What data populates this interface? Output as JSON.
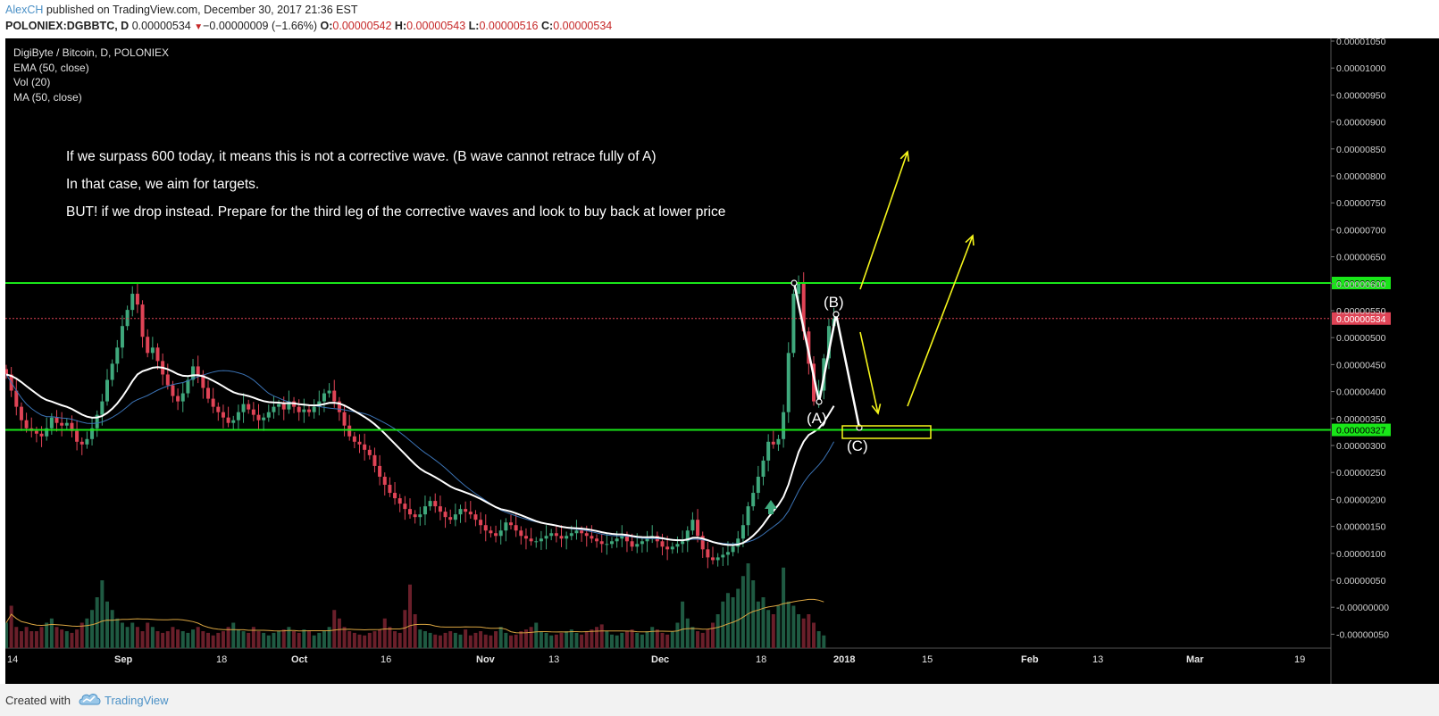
{
  "header": {
    "author": "AlexCH",
    "published": "published on TradingView.com, December 30, 2017 21:36 EST",
    "symbol": "POLONIEX:DGBBTC, D",
    "last": "0.00000534",
    "change_arrow": "▼",
    "change": "−0.00000009 (−1.66%)",
    "o_label": "O:",
    "o_value": "0.00000542",
    "h_label": "H:",
    "h_value": "0.00000543",
    "l_label": "L:",
    "l_value": "0.00000516",
    "c_label": "C:",
    "c_value": "0.00000534"
  },
  "legend": {
    "title": "DigiByte / Bitcoin, D, POLONIEX",
    "ema": "EMA (50, close)",
    "vol": "Vol (20)",
    "ma": "MA (50, close)"
  },
  "annotations": {
    "line1": "If we surpass 600 today, it means this is not a corrective wave. (B wave cannot retrace fully of A)",
    "line2": "In that case, we aim for targets.",
    "line3": "BUT! if we drop instead. Prepare for the third leg of the corrective waves and look to buy back at lower price",
    "wave_a": "(A)",
    "wave_b": "(B)",
    "wave_c": "(C)"
  },
  "footer": {
    "created_with": "Created with",
    "brand": "TradingView"
  },
  "colors": {
    "background": "#000000",
    "up": "#3fa87c",
    "down": "#e04456",
    "ema": "#ffffff",
    "ma": "#3b73b5",
    "vol_ma": "#d9a441",
    "level": "#19e619",
    "price_line": "#e04456",
    "arrows": "#f5f51b"
  },
  "chart_data": {
    "type": "candlestick",
    "title": "DigiByte / Bitcoin, D, POLONIEX",
    "x_tick_labels": [
      "14",
      "Sep",
      "18",
      "Oct",
      "16",
      "Nov",
      "13",
      "Dec",
      "18",
      "2018",
      "15",
      "Feb",
      "13",
      "Mar",
      "19"
    ],
    "y_tick_labels": [
      "0.00001050",
      "0.00001000",
      "0.00000950",
      "0.00000900",
      "0.00000850",
      "0.00000800",
      "0.00000750",
      "0.00000700",
      "0.00000650",
      "0.00000600",
      "0.00000550",
      "0.00000500",
      "0.00000450",
      "0.00000400",
      "0.00000350",
      "0.00000300",
      "0.00000250",
      "0.00000200",
      "0.00000150",
      "0.00000100",
      "0.00000050",
      "-0.00000000",
      "-0.00000050"
    ],
    "ylim": [
      -7e-07,
      1.055e-05
    ],
    "horizontal_levels": [
      {
        "label": "0.00000600",
        "value": 6e-06,
        "color": "#19e619"
      },
      {
        "label": "0.00000327",
        "value": 3.27e-06,
        "color": "#19e619"
      }
    ],
    "last_price": {
      "label": "0.00000534",
      "value": 5.34e-06
    },
    "candles_close_satoshi": [
      430,
      400,
      370,
      345,
      330,
      325,
      320,
      315,
      330,
      350,
      340,
      335,
      340,
      325,
      305,
      300,
      310,
      330,
      355,
      380,
      420,
      450,
      480,
      520,
      550,
      580,
      560,
      500,
      470,
      480,
      455,
      430,
      410,
      390,
      380,
      395,
      420,
      445,
      430,
      405,
      385,
      370,
      360,
      350,
      340,
      345,
      360,
      375,
      365,
      355,
      345,
      350,
      360,
      370,
      375,
      365,
      380,
      370,
      360,
      365,
      360,
      370,
      380,
      395,
      400,
      380,
      360,
      335,
      315,
      305,
      300,
      290,
      280,
      260,
      240,
      225,
      210,
      200,
      190,
      180,
      170,
      165,
      170,
      185,
      195,
      185,
      175,
      165,
      160,
      170,
      180,
      175,
      170,
      160,
      150,
      140,
      135,
      130,
      140,
      155,
      150,
      140,
      130,
      125,
      120,
      120,
      125,
      130,
      135,
      130,
      125,
      130,
      135,
      140,
      135,
      130,
      125,
      120,
      115,
      115,
      120,
      125,
      130,
      120,
      110,
      115,
      120,
      125,
      130,
      120,
      110,
      105,
      110,
      115,
      120,
      140,
      160,
      130,
      105,
      90,
      85,
      90,
      95,
      100,
      110,
      125,
      150,
      185,
      210,
      240,
      270,
      305,
      300,
      310,
      360,
      470,
      580,
      600,
      510,
      450,
      380,
      400,
      460,
      520,
      534
    ],
    "volume_relative": [
      0.3,
      0.5,
      0.25,
      0.2,
      0.25,
      0.2,
      0.2,
      0.25,
      0.3,
      0.35,
      0.25,
      0.22,
      0.2,
      0.18,
      0.22,
      0.3,
      0.35,
      0.45,
      0.6,
      0.8,
      0.55,
      0.45,
      0.35,
      0.3,
      0.25,
      0.3,
      0.25,
      0.2,
      0.3,
      0.25,
      0.2,
      0.18,
      0.2,
      0.25,
      0.22,
      0.2,
      0.18,
      0.22,
      0.25,
      0.2,
      0.18,
      0.15,
      0.18,
      0.2,
      0.25,
      0.3,
      0.22,
      0.2,
      0.18,
      0.25,
      0.2,
      0.18,
      0.15,
      0.18,
      0.2,
      0.22,
      0.25,
      0.2,
      0.18,
      0.22,
      0.2,
      0.15,
      0.18,
      0.2,
      0.25,
      0.45,
      0.35,
      0.25,
      0.2,
      0.18,
      0.16,
      0.15,
      0.18,
      0.2,
      0.22,
      0.35,
      0.25,
      0.2,
      0.18,
      0.45,
      0.75,
      0.4,
      0.22,
      0.2,
      0.18,
      0.16,
      0.15,
      0.18,
      0.2,
      0.18,
      0.16,
      0.22,
      0.15,
      0.18,
      0.2,
      0.16,
      0.15,
      0.2,
      0.25,
      0.18,
      0.15,
      0.16,
      0.2,
      0.22,
      0.25,
      0.3,
      0.2,
      0.18,
      0.15,
      0.16,
      0.18,
      0.2,
      0.22,
      0.18,
      0.16,
      0.2,
      0.22,
      0.25,
      0.28,
      0.2,
      0.16,
      0.15,
      0.18,
      0.2,
      0.22,
      0.18,
      0.16,
      0.2,
      0.25,
      0.22,
      0.18,
      0.16,
      0.2,
      0.3,
      0.55,
      0.35,
      0.25,
      0.2,
      0.18,
      0.22,
      0.3,
      0.4,
      0.55,
      0.65,
      0.6,
      0.7,
      0.85,
      1.0,
      0.8,
      0.55,
      0.6,
      0.45,
      0.4,
      0.5,
      0.95,
      0.55,
      0.5,
      0.4,
      0.35,
      0.4,
      0.3,
      0.2,
      0.15
    ],
    "wave_points": [
      {
        "label": "",
        "date_index": 159,
        "price": 600
      },
      {
        "label": "(A)",
        "date_index": 164,
        "price": 380
      },
      {
        "label": "(B)",
        "date_index": 170,
        "price": 545
      },
      {
        "label": "(C)",
        "date_index": 174,
        "price": 330
      }
    ]
  }
}
